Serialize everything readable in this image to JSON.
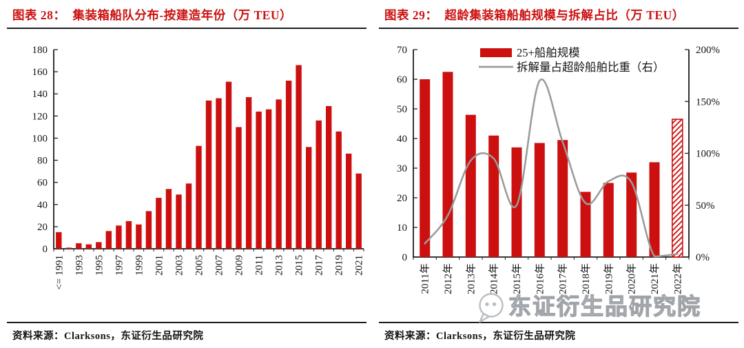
{
  "figures": [
    {
      "label": "图表 28：",
      "title": "集装箱船队分布-按建造年份（万 TEU）",
      "source": "资料来源：Clarksons，东证衍生品研究院"
    },
    {
      "label": "图表 29：",
      "title": "超龄集装箱船舶规模与拆解占比（万 TEU）",
      "source": "资料来源：Clarksons，东证衍生品研究院"
    }
  ],
  "watermark": {
    "text": "东证衍生品研究院",
    "icon": "chat-bubble-logo"
  },
  "colors": {
    "accent_red": "#cc0f0f",
    "line_gray": "#9b9b9b",
    "axis_black": "#1c1c1c",
    "title_red": "#cc1111",
    "watermark_gray": "#b9bdc2"
  },
  "chart_data": [
    {
      "id": "container-fleet-by-build-year",
      "type": "bar",
      "title": "集装箱船队分布-按建造年份（万 TEU）",
      "xlabel": "",
      "ylabel": "",
      "ylim": [
        0,
        180
      ],
      "ytick_step": 20,
      "grid": false,
      "bar_color": "#cc0f0f",
      "label_every": 2,
      "categories": [
        "<= 1991",
        "1992",
        "1993",
        "1994",
        "1995",
        "1996",
        "1997",
        "1998",
        "1999",
        "2000",
        "2001",
        "2002",
        "2003",
        "2004",
        "2005",
        "2006",
        "2007",
        "2008",
        "2009",
        "2010",
        "2011",
        "2012",
        "2013",
        "2014",
        "2015",
        "2016",
        "2017",
        "2018",
        "2019",
        "2020",
        "2021"
      ],
      "values": [
        15,
        1,
        5,
        4,
        6,
        16,
        21,
        25,
        22,
        34,
        46,
        54,
        49,
        59,
        93,
        134,
        136,
        151,
        110,
        137,
        124,
        126,
        135,
        152,
        166,
        92,
        116,
        129,
        106,
        86,
        68
      ]
    },
    {
      "id": "overage-fleet-and-scrap-ratio",
      "type": "bar+line",
      "title": "超龄集装箱船舶规模与拆解占比（万 TEU）",
      "grid": false,
      "legend_position": "top-center",
      "categories": [
        "2011年",
        "2012年",
        "2013年",
        "2014年",
        "2015年",
        "2016年",
        "2017年",
        "2018年",
        "2019年",
        "2020年",
        "2021年",
        "2022年"
      ],
      "left_axis": {
        "ylim": [
          0,
          70
        ],
        "tick_step": 10
      },
      "right_axis": {
        "ylim": [
          0,
          200
        ],
        "tick_step": 50,
        "suffix": "%"
      },
      "series": [
        {
          "name": "25+船舶规模",
          "type": "bar",
          "axis": "left",
          "color": "#cc0f0f",
          "hatched_last_bar": true,
          "values": [
            60,
            62.5,
            48,
            41,
            37,
            38.5,
            39.5,
            22,
            25,
            28.5,
            32,
            46.5
          ]
        },
        {
          "name": "拆解量占超龄船舶比重（右）",
          "type": "line",
          "axis": "right",
          "color": "#9b9b9b",
          "values": [
            13,
            40,
            93,
            95,
            50,
            170,
            111,
            52,
            73,
            72,
            0,
            3
          ]
        }
      ]
    }
  ]
}
